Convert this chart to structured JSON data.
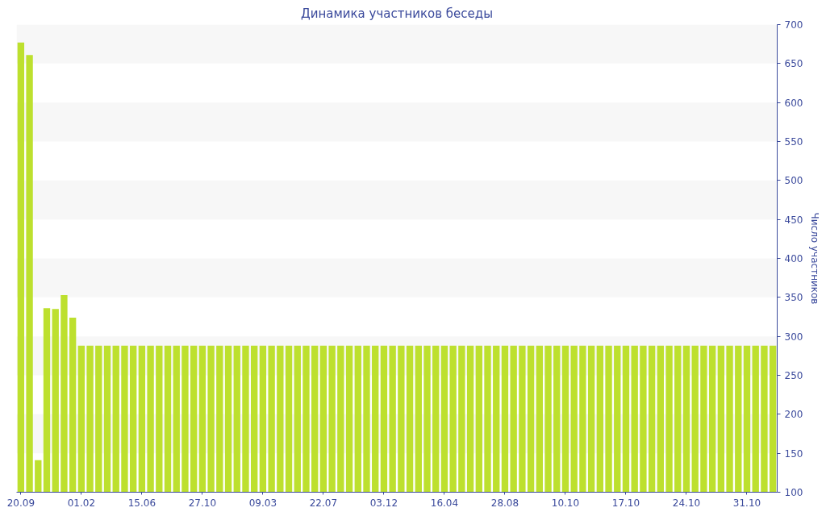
{
  "chart_data": {
    "type": "bar",
    "title": "Динамика участников беседы",
    "ylabel": "Число участников",
    "categories": [
      "20.09",
      null,
      null,
      null,
      null,
      null,
      null,
      "01.02",
      null,
      null,
      null,
      null,
      null,
      null,
      "15.06",
      null,
      null,
      null,
      null,
      null,
      null,
      "27.10",
      null,
      null,
      null,
      null,
      null,
      null,
      "09.03",
      null,
      null,
      null,
      null,
      null,
      null,
      "22.07",
      null,
      null,
      null,
      null,
      null,
      null,
      "03.12",
      null,
      null,
      null,
      null,
      null,
      null,
      "16.04",
      null,
      null,
      null,
      null,
      null,
      null,
      "28.08",
      null,
      null,
      null,
      null,
      null,
      null,
      "10.10",
      null,
      null,
      null,
      null,
      null,
      null,
      "17.10",
      null,
      null,
      null,
      null,
      null,
      null,
      "24.10",
      null,
      null,
      null,
      null,
      null,
      null,
      "31.10",
      null,
      null,
      null
    ],
    "values": [
      677,
      661,
      141,
      336,
      335,
      353,
      324,
      288,
      288,
      288,
      288,
      288,
      288,
      288,
      288,
      288,
      288,
      288,
      288,
      288,
      288,
      288,
      288,
      288,
      288,
      288,
      288,
      288,
      288,
      288,
      288,
      288,
      288,
      288,
      288,
      288,
      288,
      288,
      288,
      288,
      288,
      288,
      288,
      288,
      288,
      288,
      288,
      288,
      288,
      288,
      288,
      288,
      288,
      288,
      288,
      288,
      288,
      288,
      288,
      288,
      288,
      288,
      288,
      288,
      288,
      288,
      288,
      288,
      288,
      288,
      288,
      288,
      288,
      288,
      288,
      288,
      288,
      288,
      288,
      288,
      288,
      288,
      288,
      288,
      288,
      288,
      288,
      288
    ],
    "color": "#bde02e",
    "ylim": [
      100,
      700
    ],
    "yticks": [
      100,
      150,
      200,
      250,
      300,
      350,
      400,
      450,
      500,
      550,
      600,
      650,
      700
    ],
    "grid": false
  }
}
